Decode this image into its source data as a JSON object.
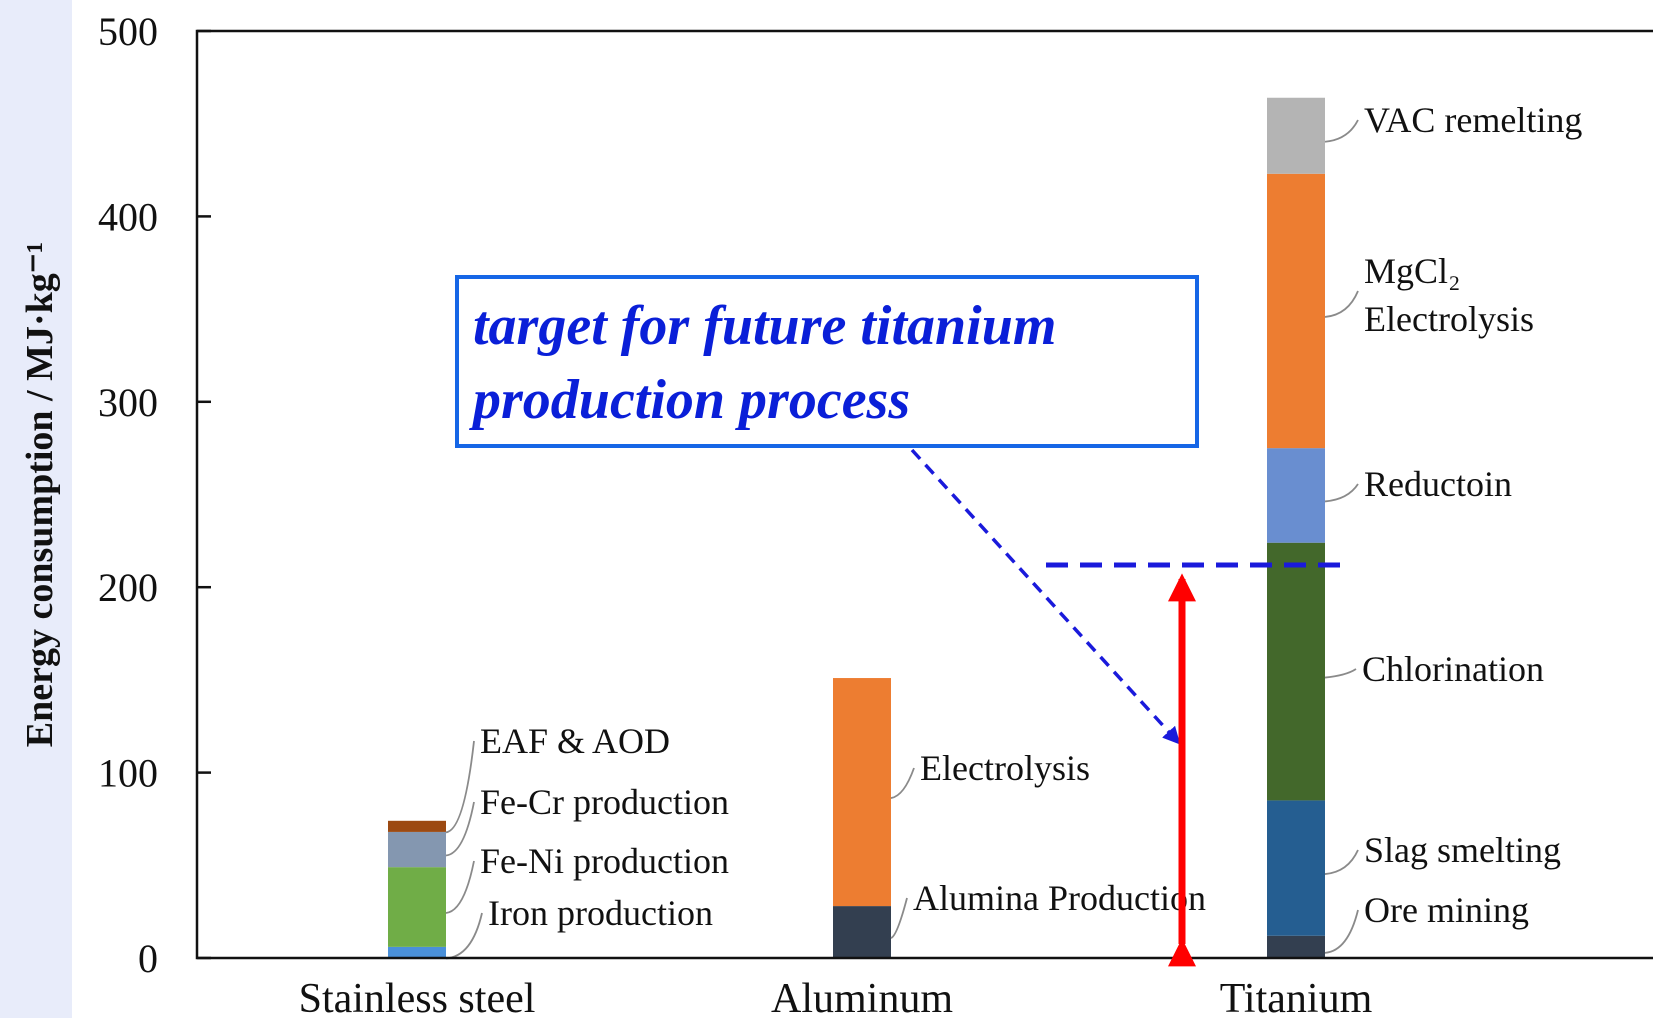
{
  "chart_data": {
    "type": "bar",
    "stacked": true,
    "ylabel": "Energy consumption / MJ·kg⁻¹",
    "xlabel": "",
    "ylim": [
      0,
      500
    ],
    "yticks": [
      "0",
      "100",
      "200",
      "300",
      "400",
      "500"
    ],
    "categories": [
      "Stainless  steel",
      "Aluminum",
      "Titanium"
    ],
    "stacks": [
      {
        "category": "Stainless  steel",
        "segments": [
          {
            "label": "Iron production",
            "value": 6,
            "color": "#4a90d9"
          },
          {
            "label": "Fe-Ni production",
            "value": 43,
            "color": "#70ad47"
          },
          {
            "label": "Fe-Cr production",
            "value": 19,
            "color": "#8497b0"
          },
          {
            "label": "EAF & AOD",
            "value": 6,
            "color": "#9c4a12"
          }
        ]
      },
      {
        "category": "Aluminum",
        "segments": [
          {
            "label": "Alumina Production",
            "value": 28,
            "color": "#333f50"
          },
          {
            "label": "Electrolysis",
            "value": 123,
            "color": "#ed7d31"
          }
        ]
      },
      {
        "category": "Titanium",
        "segments": [
          {
            "label": "Ore mining",
            "value": 12,
            "color": "#333f50"
          },
          {
            "label": "Slag smelting",
            "value": 73,
            "color": "#255e91"
          },
          {
            "label": "Chlorination",
            "value": 139,
            "color": "#43682b"
          },
          {
            "label": "Reductoin",
            "value": 51,
            "color": "#698ed0"
          },
          {
            "label": "MgCl₂\nElectrolysis",
            "value": 148,
            "color": "#ed7d31"
          },
          {
            "label": "VAC remelting",
            "value": 41,
            "color": "#b4b4b4"
          }
        ]
      }
    ],
    "target_line": {
      "value": 212,
      "color": "#1a1adb"
    },
    "annotation": {
      "line1": "target for future titanium",
      "line2": "production process",
      "text_color": "#0a1fd8",
      "border_color": "#1666e6"
    },
    "arrow": {
      "from": 0,
      "to": 212,
      "color": "#ff0000"
    }
  }
}
